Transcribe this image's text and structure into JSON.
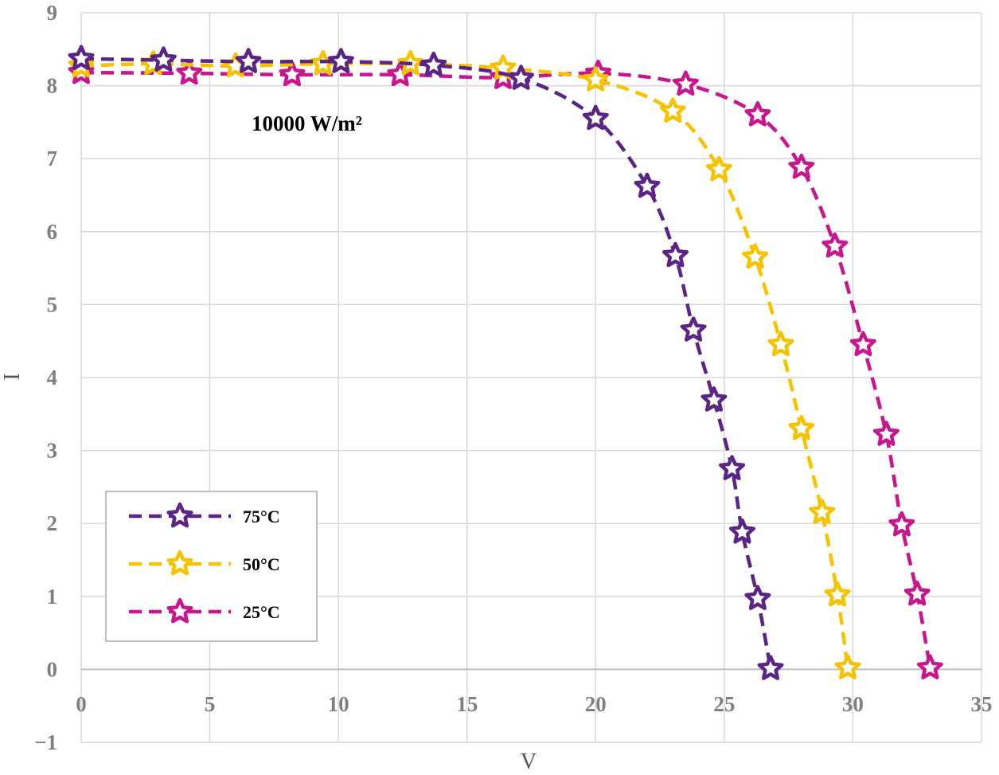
{
  "chart_data": {
    "type": "line",
    "title": "",
    "annotation": "10000 W/m²",
    "xlabel": "V",
    "ylabel": "I",
    "xlim": [
      0,
      35
    ],
    "ylim": [
      -1,
      9
    ],
    "x_ticks": [
      "0",
      "5",
      "10",
      "15",
      "20",
      "25",
      "30",
      "35"
    ],
    "y_ticks": [
      "−1",
      "0",
      "1",
      "2",
      "3",
      "4",
      "5",
      "6",
      "7",
      "8",
      "9"
    ],
    "grid": true,
    "legend_position": "lower-left",
    "series": [
      {
        "name": "75°C",
        "color": "#5b2487",
        "line_style": "dashed",
        "marker": "star",
        "x": [
          0,
          3.2,
          6.5,
          10.1,
          13.7,
          17.1,
          20.0,
          22.0,
          23.1,
          23.8,
          24.6,
          25.3,
          25.7,
          26.3,
          26.8
        ],
        "y": [
          8.37,
          8.35,
          8.33,
          8.33,
          8.28,
          8.1,
          7.55,
          6.62,
          5.67,
          4.65,
          3.69,
          2.75,
          1.88,
          0.97,
          0.01
        ]
      },
      {
        "name": "50°C",
        "color": "#f5c300",
        "line_style": "dashed",
        "marker": "star",
        "x": [
          0,
          2.8,
          6.0,
          9.4,
          12.8,
          16.4,
          20.0,
          23.0,
          24.8,
          26.2,
          27.2,
          28.0,
          28.8,
          29.4,
          29.8
        ],
        "y": [
          8.27,
          8.3,
          8.27,
          8.3,
          8.3,
          8.24,
          8.08,
          7.65,
          6.85,
          5.65,
          4.45,
          3.3,
          2.15,
          1.02,
          0.02
        ]
      },
      {
        "name": "25°C",
        "color": "#c8168c",
        "line_style": "dashed",
        "marker": "star",
        "x": [
          0,
          4.2,
          8.2,
          12.4,
          16.4,
          20.1,
          23.5,
          26.3,
          28.0,
          29.3,
          30.4,
          31.3,
          31.9,
          32.5,
          33.0
        ],
        "y": [
          8.18,
          8.17,
          8.15,
          8.15,
          8.11,
          8.17,
          8.02,
          7.6,
          6.88,
          5.8,
          4.45,
          3.22,
          1.98,
          1.03,
          0.02
        ]
      }
    ]
  }
}
